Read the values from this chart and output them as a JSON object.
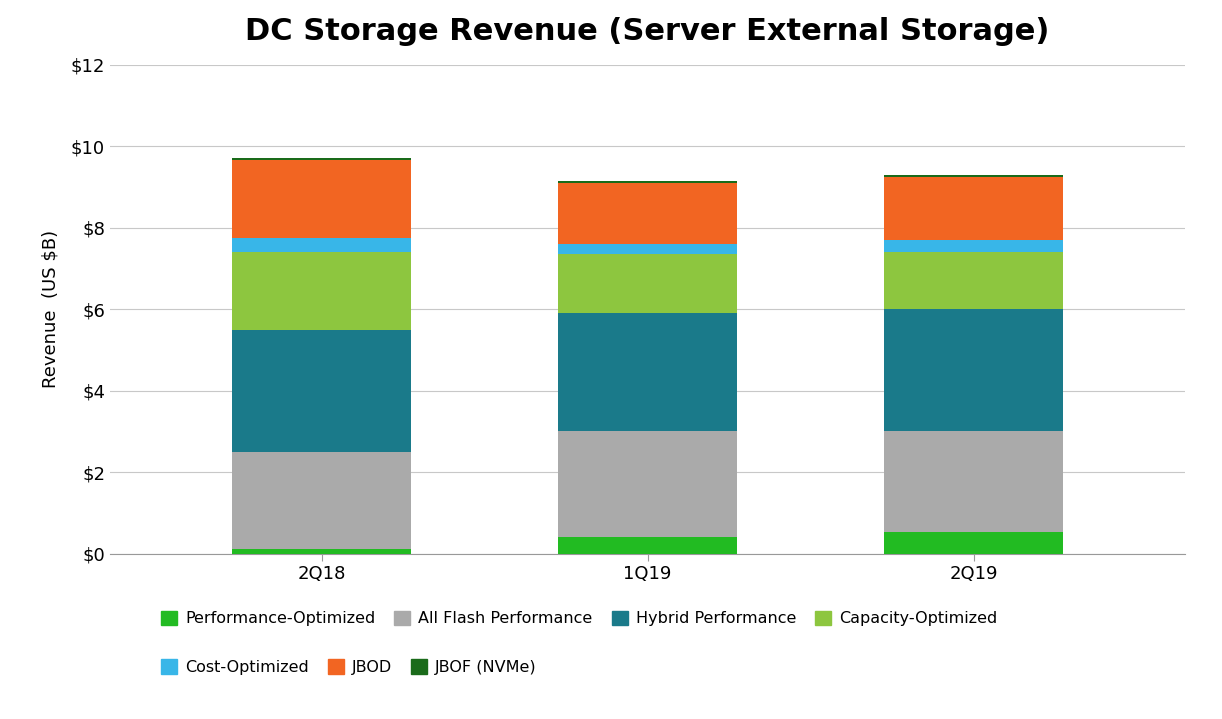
{
  "title": "DC Storage Revenue (Server External Storage)",
  "categories": [
    "2Q18",
    "1Q19",
    "2Q19"
  ],
  "ylabel": "Revenue  (US $B)",
  "ylim": [
    0,
    12
  ],
  "yticks": [
    0,
    2,
    4,
    6,
    8,
    10,
    12
  ],
  "ytick_labels": [
    "$0",
    "$2",
    "$4",
    "$6",
    "$8",
    "$10",
    "$12"
  ],
  "segments": [
    {
      "label": "Performance-Optimized",
      "color": "#22BB22",
      "values": [
        0.12,
        0.42,
        0.52
      ]
    },
    {
      "label": "All Flash Performance",
      "color": "#AAAAAA",
      "values": [
        2.38,
        2.58,
        2.48
      ]
    },
    {
      "label": "Hybrid Performance",
      "color": "#1A7A8A",
      "values": [
        3.0,
        2.9,
        3.0
      ]
    },
    {
      "label": "Capacity-Optimized",
      "color": "#8DC63F",
      "values": [
        1.9,
        1.45,
        1.4
      ]
    },
    {
      "label": "Cost-Optimized",
      "color": "#38B6E8",
      "values": [
        0.35,
        0.25,
        0.3
      ]
    },
    {
      "label": "JBOD",
      "color": "#F26522",
      "values": [
        1.9,
        1.5,
        1.55
      ]
    },
    {
      "label": "JBOF (NVMe)",
      "color": "#1A6B1A",
      "values": [
        0.05,
        0.05,
        0.05
      ]
    }
  ],
  "bar_width": 0.55,
  "background_color": "#FFFFFF",
  "title_fontsize": 22,
  "axis_label_fontsize": 13,
  "tick_fontsize": 13,
  "legend_fontsize": 11.5,
  "grid_color": "#C8C8C8",
  "border_color": "#999999"
}
